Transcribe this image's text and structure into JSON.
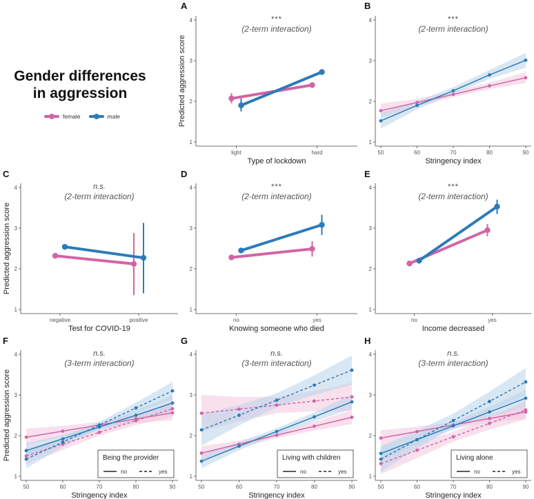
{
  "title": {
    "line1": "Gender differences",
    "line2": "in aggression"
  },
  "legend": [
    {
      "label": "female",
      "color": "#d264a6"
    },
    {
      "label": "male",
      "color": "#2b7bb9"
    }
  ],
  "colors": {
    "female": "#d264a6",
    "male": "#2b7bb9",
    "band_female": "#f3c6de",
    "band_male": "#b9d3ea"
  },
  "ylabel": "Predicted aggression score",
  "chart_data": [
    {
      "id": "A",
      "type": "line",
      "sig": "***",
      "interaction": "(2-term interaction)",
      "xlabel": "Type of lockdown",
      "categories": [
        "light",
        "hard"
      ],
      "ylim": [
        1,
        4
      ],
      "yticks": [
        1,
        2,
        3,
        4
      ],
      "series": [
        {
          "name": "female",
          "values": [
            2.07,
            2.4
          ],
          "err": [
            [
              1.95,
              2.2
            ],
            [
              2.33,
              2.45
            ]
          ]
        },
        {
          "name": "male",
          "values": [
            1.9,
            2.72
          ],
          "err": [
            [
              1.75,
              2.07
            ],
            [
              2.66,
              2.79
            ]
          ]
        }
      ]
    },
    {
      "id": "B",
      "type": "line",
      "sig": "***",
      "interaction": "(2-term interaction)",
      "xlabel": "Stringency index",
      "x": [
        50,
        60,
        70,
        80,
        90
      ],
      "xticks": [
        50,
        60,
        70,
        80,
        90
      ],
      "ylim": [
        1,
        4
      ],
      "yticks": [
        1,
        2,
        3,
        4
      ],
      "series": [
        {
          "name": "female",
          "values": [
            1.77,
            1.97,
            2.17,
            2.38,
            2.58
          ],
          "band": [
            [
              1.6,
              1.94
            ],
            [
              1.88,
              2.06
            ],
            [
              2.1,
              2.24
            ],
            [
              2.3,
              2.46
            ],
            [
              2.45,
              2.72
            ]
          ]
        },
        {
          "name": "male",
          "values": [
            1.52,
            1.9,
            2.26,
            2.65,
            3.01
          ],
          "band": [
            [
              1.33,
              1.72
            ],
            [
              1.8,
              2.0
            ],
            [
              2.18,
              2.35
            ],
            [
              2.55,
              2.77
            ],
            [
              2.83,
              3.19
            ]
          ]
        }
      ]
    },
    {
      "id": "C",
      "type": "line",
      "sig": "n.s.",
      "interaction": "(2-term interaction)",
      "xlabel": "Test for COVID-19",
      "categories": [
        "negative",
        "positive"
      ],
      "ylim": [
        1,
        4
      ],
      "yticks": [
        1,
        2,
        3,
        4
      ],
      "series": [
        {
          "name": "female",
          "values": [
            2.32,
            2.12
          ],
          "err": [
            [
              2.28,
              2.36
            ],
            [
              1.35,
              2.88
            ]
          ]
        },
        {
          "name": "male",
          "values": [
            2.54,
            2.27
          ],
          "err": [
            [
              2.5,
              2.58
            ],
            [
              1.4,
              3.13
            ]
          ]
        }
      ]
    },
    {
      "id": "D",
      "type": "line",
      "sig": "***",
      "interaction": "(2-term interaction)",
      "xlabel": "Knowing someone who died",
      "categories": [
        "no",
        "yes"
      ],
      "ylim": [
        1,
        4
      ],
      "yticks": [
        1,
        2,
        3,
        4
      ],
      "series": [
        {
          "name": "female",
          "values": [
            2.28,
            2.49
          ],
          "err": [
            [
              2.24,
              2.32
            ],
            [
              2.3,
              2.68
            ]
          ]
        },
        {
          "name": "male",
          "values": [
            2.45,
            3.08
          ],
          "err": [
            [
              2.4,
              2.5
            ],
            [
              2.83,
              3.33
            ]
          ]
        }
      ]
    },
    {
      "id": "E",
      "type": "line",
      "sig": "***",
      "interaction": "(2-term interaction)",
      "xlabel": "Income decreased",
      "categories": [
        "no",
        "yes"
      ],
      "ylim": [
        1,
        4
      ],
      "yticks": [
        1,
        2,
        3,
        4
      ],
      "series": [
        {
          "name": "female",
          "values": [
            2.13,
            2.95
          ],
          "err": [
            [
              2.08,
              2.18
            ],
            [
              2.8,
              3.1
            ]
          ]
        },
        {
          "name": "male",
          "values": [
            2.2,
            3.53
          ],
          "err": [
            [
              2.13,
              2.27
            ],
            [
              3.35,
              3.7
            ]
          ]
        }
      ]
    },
    {
      "id": "F",
      "type": "line",
      "sig": "n.s.",
      "interaction": "(3-term interaction)",
      "xlabel": "Stringency index",
      "x": [
        50,
        60,
        70,
        80,
        90
      ],
      "xticks": [
        50,
        60,
        70,
        80,
        90
      ],
      "ylim": [
        1,
        4
      ],
      "yticks": [
        1,
        2,
        3,
        4
      ],
      "legend_title": "Being the provider",
      "linetypes": [
        "no",
        "yes"
      ],
      "series": [
        {
          "name": "female",
          "linetype": "no",
          "values": [
            1.96,
            2.11,
            2.26,
            2.41,
            2.56
          ],
          "band": [
            [
              1.75,
              2.17
            ],
            [
              1.98,
              2.24
            ],
            [
              2.18,
              2.34
            ],
            [
              2.3,
              2.52
            ],
            [
              2.38,
              2.74
            ]
          ]
        },
        {
          "name": "female",
          "linetype": "yes",
          "values": [
            1.5,
            1.79,
            2.08,
            2.37,
            2.66
          ],
          "band": [
            [
              1.3,
              1.7
            ],
            [
              1.65,
              1.93
            ],
            [
              2.0,
              2.16
            ],
            [
              2.26,
              2.48
            ],
            [
              2.47,
              2.85
            ]
          ]
        },
        {
          "name": "male",
          "linetype": "no",
          "values": [
            1.63,
            1.92,
            2.21,
            2.5,
            2.8
          ],
          "band": [
            [
              1.45,
              1.81
            ],
            [
              1.82,
              2.02
            ],
            [
              2.14,
              2.28
            ],
            [
              2.38,
              2.62
            ],
            [
              2.6,
              3.0
            ]
          ]
        },
        {
          "name": "male",
          "linetype": "yes",
          "values": [
            1.42,
            1.84,
            2.26,
            2.68,
            3.1
          ],
          "band": [
            [
              1.2,
              1.64
            ],
            [
              1.72,
              1.96
            ],
            [
              2.18,
              2.34
            ],
            [
              2.55,
              2.81
            ],
            [
              2.88,
              3.32
            ]
          ]
        }
      ]
    },
    {
      "id": "G",
      "type": "line",
      "sig": "n.s.",
      "interaction": "(3-term interaction)",
      "xlabel": "Stringency index",
      "x": [
        50,
        60,
        70,
        80,
        90
      ],
      "xticks": [
        50,
        60,
        70,
        80,
        90
      ],
      "ylim": [
        1,
        4
      ],
      "yticks": [
        1,
        2,
        3,
        4
      ],
      "legend_title": "Living with children",
      "linetypes": [
        "no",
        "yes"
      ],
      "series": [
        {
          "name": "female",
          "linetype": "no",
          "values": [
            1.57,
            1.79,
            2.01,
            2.23,
            2.45
          ],
          "band": [
            [
              1.4,
              1.74
            ],
            [
              1.7,
              1.88
            ],
            [
              1.94,
              2.08
            ],
            [
              2.12,
              2.34
            ],
            [
              2.28,
              2.62
            ]
          ]
        },
        {
          "name": "female",
          "linetype": "yes",
          "values": [
            2.55,
            2.65,
            2.75,
            2.85,
            2.95
          ],
          "band": [
            [
              2.1,
              3.0
            ],
            [
              2.35,
              2.95
            ],
            [
              2.55,
              2.95
            ],
            [
              2.6,
              3.1
            ],
            [
              2.6,
              3.3
            ]
          ]
        },
        {
          "name": "male",
          "linetype": "no",
          "values": [
            1.37,
            1.74,
            2.1,
            2.46,
            2.83
          ],
          "band": [
            [
              1.2,
              1.54
            ],
            [
              1.64,
              1.84
            ],
            [
              2.02,
              2.18
            ],
            [
              2.35,
              2.57
            ],
            [
              2.65,
              3.01
            ]
          ]
        },
        {
          "name": "male",
          "linetype": "yes",
          "values": [
            2.14,
            2.5,
            2.87,
            3.24,
            3.61
          ],
          "band": [
            [
              1.75,
              2.53
            ],
            [
              2.25,
              2.75
            ],
            [
              2.7,
              3.04
            ],
            [
              3.0,
              3.48
            ],
            [
              3.25,
              3.97
            ]
          ]
        }
      ]
    },
    {
      "id": "H",
      "type": "line",
      "sig": "n.s.",
      "interaction": "(3-term interaction)",
      "xlabel": "Stringency index",
      "x": [
        50,
        60,
        70,
        80,
        90
      ],
      "xticks": [
        50,
        60,
        70,
        80,
        90
      ],
      "ylim": [
        1,
        4
      ],
      "yticks": [
        1,
        2,
        3,
        4
      ],
      "legend_title": "Living alone",
      "linetypes": [
        "no",
        "yes"
      ],
      "series": [
        {
          "name": "female",
          "linetype": "no",
          "values": [
            1.94,
            2.1,
            2.26,
            2.42,
            2.58
          ],
          "band": [
            [
              1.75,
              2.13
            ],
            [
              1.98,
              2.22
            ],
            [
              2.18,
              2.34
            ],
            [
              2.32,
              2.52
            ],
            [
              2.42,
              2.74
            ]
          ]
        },
        {
          "name": "female",
          "linetype": "yes",
          "values": [
            1.31,
            1.64,
            1.97,
            2.3,
            2.63
          ],
          "band": [
            [
              1.05,
              1.57
            ],
            [
              1.45,
              1.83
            ],
            [
              1.85,
              2.09
            ],
            [
              2.15,
              2.45
            ],
            [
              2.4,
              2.86
            ]
          ]
        },
        {
          "name": "male",
          "linetype": "no",
          "values": [
            1.56,
            1.9,
            2.24,
            2.58,
            2.92
          ],
          "band": [
            [
              1.38,
              1.74
            ],
            [
              1.79,
              2.01
            ],
            [
              2.15,
              2.33
            ],
            [
              2.45,
              2.71
            ],
            [
              2.72,
              3.12
            ]
          ]
        },
        {
          "name": "male",
          "linetype": "yes",
          "values": [
            1.42,
            1.9,
            2.37,
            2.84,
            3.32
          ],
          "band": [
            [
              1.1,
              1.74
            ],
            [
              1.68,
              2.12
            ],
            [
              2.2,
              2.54
            ],
            [
              2.6,
              3.08
            ],
            [
              2.98,
              3.66
            ]
          ]
        }
      ]
    }
  ]
}
